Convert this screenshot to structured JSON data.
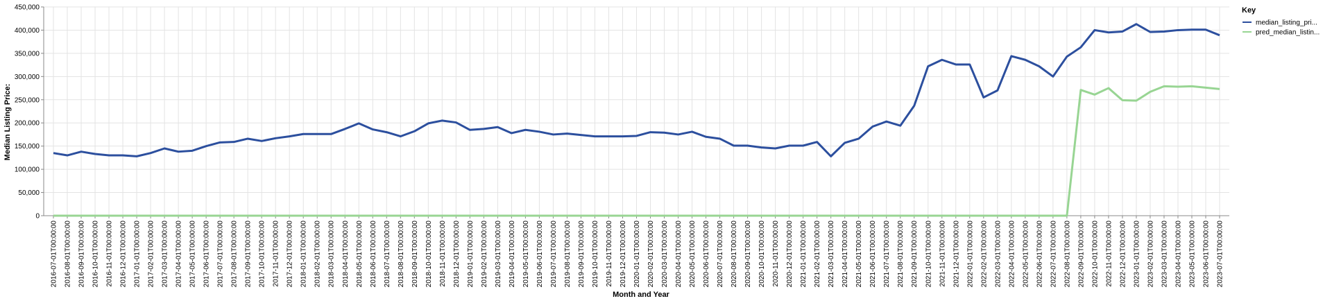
{
  "chart_data": {
    "type": "line",
    "xlabel": "Month and Year",
    "ylabel": "Median Listing Price:",
    "ylim": [
      0,
      450000
    ],
    "yticks": [
      "0",
      "50,000",
      "100,000",
      "150,000",
      "200,000",
      "250,000",
      "300,000",
      "350,000",
      "400,000",
      "450,000"
    ],
    "grid": true,
    "legend_title": "Key",
    "legend_position": "top-right",
    "x": [
      "2016-07-01T00:00:00",
      "2016-08-01T00:00:00",
      "2016-09-01T00:00:00",
      "2016-10-01T00:00:00",
      "2016-11-01T00:00:00",
      "2016-12-01T00:00:00",
      "2017-01-01T00:00:00",
      "2017-02-01T00:00:00",
      "2017-03-01T00:00:00",
      "2017-04-01T00:00:00",
      "2017-05-01T00:00:00",
      "2017-06-01T00:00:00",
      "2017-07-01T00:00:00",
      "2017-08-01T00:00:00",
      "2017-09-01T00:00:00",
      "2017-10-01T00:00:00",
      "2017-11-01T00:00:00",
      "2017-12-01T00:00:00",
      "2018-01-01T00:00:00",
      "2018-02-01T00:00:00",
      "2018-03-01T00:00:00",
      "2018-04-01T00:00:00",
      "2018-05-01T00:00:00",
      "2018-06-01T00:00:00",
      "2018-07-01T00:00:00",
      "2018-08-01T00:00:00",
      "2018-09-01T00:00:00",
      "2018-10-01T00:00:00",
      "2018-11-01T00:00:00",
      "2018-12-01T00:00:00",
      "2019-01-01T00:00:00",
      "2019-02-01T00:00:00",
      "2019-03-01T00:00:00",
      "2019-04-01T00:00:00",
      "2019-05-01T00:00:00",
      "2019-06-01T00:00:00",
      "2019-07-01T00:00:00",
      "2019-08-01T00:00:00",
      "2019-09-01T00:00:00",
      "2019-10-01T00:00:00",
      "2019-11-01T00:00:00",
      "2019-12-01T00:00:00",
      "2020-01-01T00:00:00",
      "2020-02-01T00:00:00",
      "2020-03-01T00:00:00",
      "2020-04-01T00:00:00",
      "2020-05-01T00:00:00",
      "2020-06-01T00:00:00",
      "2020-07-01T00:00:00",
      "2020-08-01T00:00:00",
      "2020-09-01T00:00:00",
      "2020-10-01T00:00:00",
      "2020-11-01T00:00:00",
      "2020-12-01T00:00:00",
      "2021-01-01T00:00:00",
      "2021-02-01T00:00:00",
      "2021-03-01T00:00:00",
      "2021-04-01T00:00:00",
      "2021-05-01T00:00:00",
      "2021-06-01T00:00:00",
      "2021-07-01T00:00:00",
      "2021-08-01T00:00:00",
      "2021-09-01T00:00:00",
      "2021-10-01T00:00:00",
      "2021-11-01T00:00:00",
      "2021-12-01T00:00:00",
      "2022-01-01T00:00:00",
      "2022-02-01T00:00:00",
      "2022-03-01T00:00:00",
      "2022-04-01T00:00:00",
      "2022-05-01T00:00:00",
      "2022-06-01T00:00:00",
      "2022-07-01T00:00:00",
      "2022-08-01T00:00:00",
      "2022-09-01T00:00:00",
      "2022-10-01T00:00:00",
      "2022-11-01T00:00:00",
      "2022-12-01T00:00:00",
      "2023-01-01T00:00:00",
      "2023-02-01T00:00:00",
      "2023-03-01T00:00:00",
      "2023-04-01T00:00:00",
      "2023-05-01T00:00:00",
      "2023-06-01T00:00:00",
      "2023-07-01T00:00:00"
    ],
    "series": [
      {
        "name": "median_listing_pri...",
        "color": "#2c4f9e",
        "values": [
          135000,
          130000,
          138000,
          133000,
          130000,
          130000,
          128000,
          135000,
          145000,
          138000,
          140000,
          150000,
          158000,
          159000,
          166000,
          161000,
          167000,
          171000,
          176000,
          176000,
          176000,
          187000,
          199000,
          186000,
          180000,
          171000,
          182000,
          199000,
          205000,
          201000,
          185000,
          187000,
          191000,
          178000,
          185000,
          181000,
          175000,
          177000,
          174000,
          171000,
          171000,
          171000,
          172000,
          180000,
          179000,
          175000,
          181000,
          170000,
          166000,
          151000,
          151000,
          147000,
          145000,
          151000,
          151000,
          159000,
          128000,
          157000,
          166000,
          192000,
          203000,
          194000,
          237000,
          322000,
          336000,
          326000,
          326000,
          255000,
          270000,
          344000,
          336000,
          322000,
          300000,
          343000,
          363000,
          400000,
          395000,
          397000,
          413000,
          396000,
          397000,
          400000,
          401000,
          401000,
          389000
        ]
      },
      {
        "name": "pred_median_listin...",
        "color": "#98d593",
        "values": [
          0,
          0,
          0,
          0,
          0,
          0,
          0,
          0,
          0,
          0,
          0,
          0,
          0,
          0,
          0,
          0,
          0,
          0,
          0,
          0,
          0,
          0,
          0,
          0,
          0,
          0,
          0,
          0,
          0,
          0,
          0,
          0,
          0,
          0,
          0,
          0,
          0,
          0,
          0,
          0,
          0,
          0,
          0,
          0,
          0,
          0,
          0,
          0,
          0,
          0,
          0,
          0,
          0,
          0,
          0,
          0,
          0,
          0,
          0,
          0,
          0,
          0,
          0,
          0,
          0,
          0,
          0,
          0,
          0,
          0,
          0,
          0,
          0,
          0,
          271000,
          261000,
          275000,
          249000,
          248000,
          267000,
          279000,
          278000,
          279000,
          276000,
          273000
        ]
      }
    ]
  }
}
